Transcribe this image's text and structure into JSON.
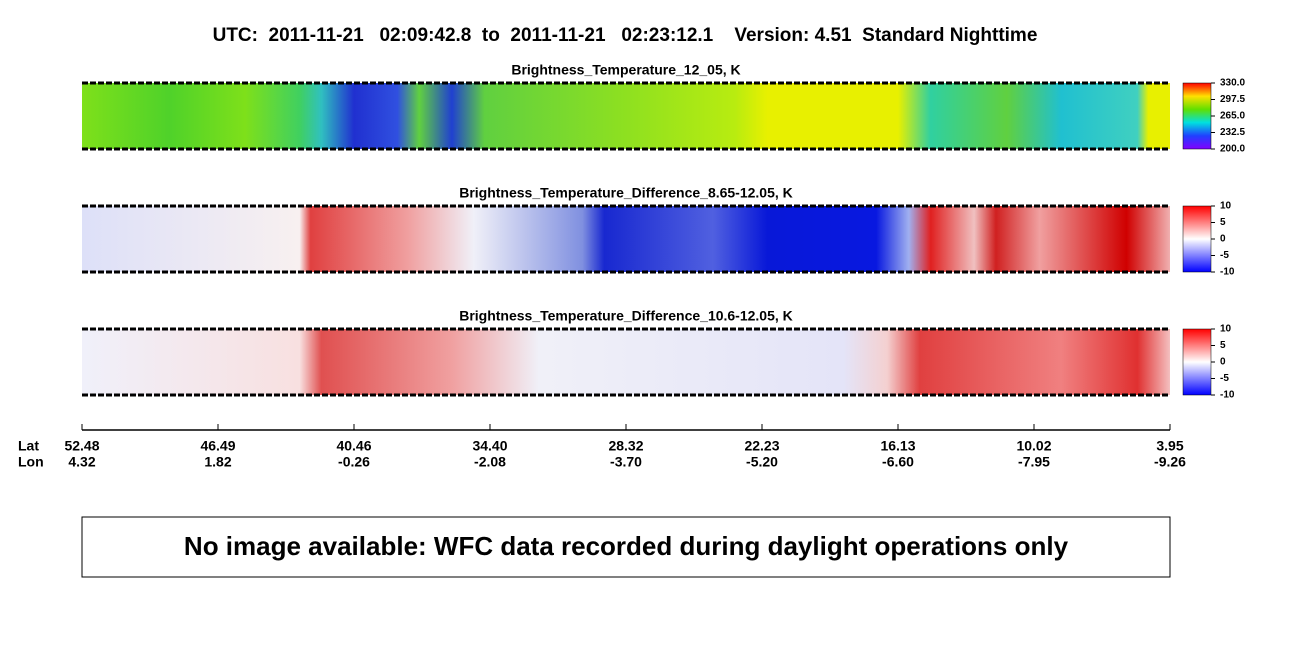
{
  "title": "UTC:  2011-11-21   02:09:42.8  to  2011-11-21   02:23:12.1    Version: 4.51  Standard Nighttime",
  "panels": [
    {
      "title": "Brightness_Temperature_12_05, K",
      "colorbar_labels": [
        "330.0",
        "297.5",
        "265.0",
        "232.5",
        "200.0"
      ]
    },
    {
      "title": "Brightness_Temperature_Difference_8.65-12.05, K",
      "colorbar_labels": [
        "10",
        "5",
        "0",
        "-5",
        "-10"
      ]
    },
    {
      "title": "Brightness_Temperature_Difference_10.6-12.05, K",
      "colorbar_labels": [
        "10",
        "5",
        "0",
        "-5",
        "-10"
      ]
    }
  ],
  "axis": {
    "row_labels": [
      "Lat",
      "Lon"
    ],
    "lat": [
      "52.48",
      "46.49",
      "40.46",
      "34.40",
      "28.32",
      "22.23",
      "16.13",
      "10.02",
      "3.95"
    ],
    "lon": [
      "4.32",
      "1.82",
      "-0.26",
      "-2.08",
      "-3.70",
      "-5.20",
      "-6.60",
      "-7.95",
      "-9.26"
    ]
  },
  "notice": "No image available: WFC data recorded during daylight operations only"
}
